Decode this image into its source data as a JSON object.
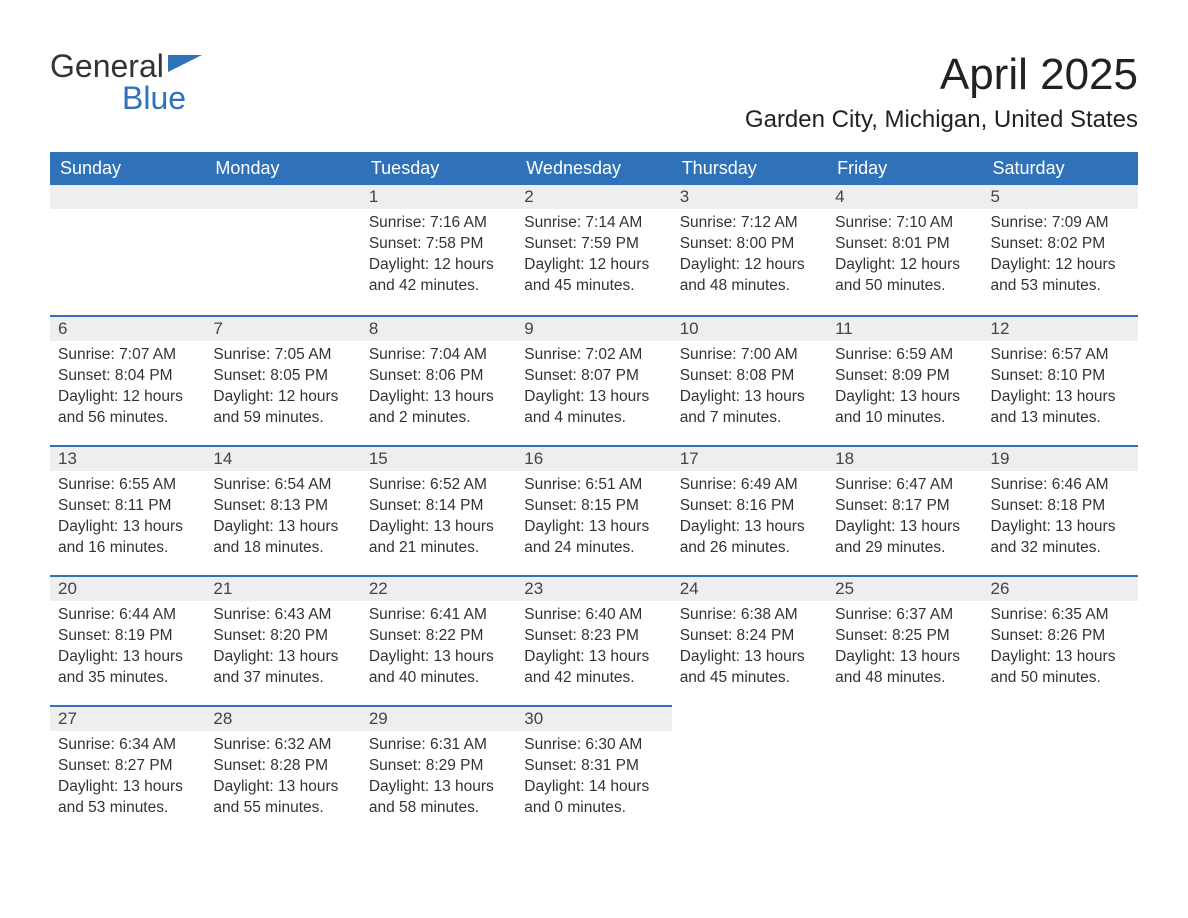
{
  "logo": {
    "word1": "General",
    "word2": "Blue",
    "accent_color": "#2f72b9"
  },
  "title": "April 2025",
  "location": "Garden City, Michigan, United States",
  "colors": {
    "header_bg": "#2f72b9",
    "header_text": "#ffffff",
    "daynum_bg": "#eeeeee",
    "week_divider": "#2f72b9",
    "body_text": "#333333",
    "page_bg": "#ffffff"
  },
  "day_headers": [
    "Sunday",
    "Monday",
    "Tuesday",
    "Wednesday",
    "Thursday",
    "Friday",
    "Saturday"
  ],
  "weeks": [
    [
      null,
      null,
      {
        "n": "1",
        "sunrise": "Sunrise: 7:16 AM",
        "sunset": "Sunset: 7:58 PM",
        "daylight": "Daylight: 12 hours and 42 minutes."
      },
      {
        "n": "2",
        "sunrise": "Sunrise: 7:14 AM",
        "sunset": "Sunset: 7:59 PM",
        "daylight": "Daylight: 12 hours and 45 minutes."
      },
      {
        "n": "3",
        "sunrise": "Sunrise: 7:12 AM",
        "sunset": "Sunset: 8:00 PM",
        "daylight": "Daylight: 12 hours and 48 minutes."
      },
      {
        "n": "4",
        "sunrise": "Sunrise: 7:10 AM",
        "sunset": "Sunset: 8:01 PM",
        "daylight": "Daylight: 12 hours and 50 minutes."
      },
      {
        "n": "5",
        "sunrise": "Sunrise: 7:09 AM",
        "sunset": "Sunset: 8:02 PM",
        "daylight": "Daylight: 12 hours and 53 minutes."
      }
    ],
    [
      {
        "n": "6",
        "sunrise": "Sunrise: 7:07 AM",
        "sunset": "Sunset: 8:04 PM",
        "daylight": "Daylight: 12 hours and 56 minutes."
      },
      {
        "n": "7",
        "sunrise": "Sunrise: 7:05 AM",
        "sunset": "Sunset: 8:05 PM",
        "daylight": "Daylight: 12 hours and 59 minutes."
      },
      {
        "n": "8",
        "sunrise": "Sunrise: 7:04 AM",
        "sunset": "Sunset: 8:06 PM",
        "daylight": "Daylight: 13 hours and 2 minutes."
      },
      {
        "n": "9",
        "sunrise": "Sunrise: 7:02 AM",
        "sunset": "Sunset: 8:07 PM",
        "daylight": "Daylight: 13 hours and 4 minutes."
      },
      {
        "n": "10",
        "sunrise": "Sunrise: 7:00 AM",
        "sunset": "Sunset: 8:08 PM",
        "daylight": "Daylight: 13 hours and 7 minutes."
      },
      {
        "n": "11",
        "sunrise": "Sunrise: 6:59 AM",
        "sunset": "Sunset: 8:09 PM",
        "daylight": "Daylight: 13 hours and 10 minutes."
      },
      {
        "n": "12",
        "sunrise": "Sunrise: 6:57 AM",
        "sunset": "Sunset: 8:10 PM",
        "daylight": "Daylight: 13 hours and 13 minutes."
      }
    ],
    [
      {
        "n": "13",
        "sunrise": "Sunrise: 6:55 AM",
        "sunset": "Sunset: 8:11 PM",
        "daylight": "Daylight: 13 hours and 16 minutes."
      },
      {
        "n": "14",
        "sunrise": "Sunrise: 6:54 AM",
        "sunset": "Sunset: 8:13 PM",
        "daylight": "Daylight: 13 hours and 18 minutes."
      },
      {
        "n": "15",
        "sunrise": "Sunrise: 6:52 AM",
        "sunset": "Sunset: 8:14 PM",
        "daylight": "Daylight: 13 hours and 21 minutes."
      },
      {
        "n": "16",
        "sunrise": "Sunrise: 6:51 AM",
        "sunset": "Sunset: 8:15 PM",
        "daylight": "Daylight: 13 hours and 24 minutes."
      },
      {
        "n": "17",
        "sunrise": "Sunrise: 6:49 AM",
        "sunset": "Sunset: 8:16 PM",
        "daylight": "Daylight: 13 hours and 26 minutes."
      },
      {
        "n": "18",
        "sunrise": "Sunrise: 6:47 AM",
        "sunset": "Sunset: 8:17 PM",
        "daylight": "Daylight: 13 hours and 29 minutes."
      },
      {
        "n": "19",
        "sunrise": "Sunrise: 6:46 AM",
        "sunset": "Sunset: 8:18 PM",
        "daylight": "Daylight: 13 hours and 32 minutes."
      }
    ],
    [
      {
        "n": "20",
        "sunrise": "Sunrise: 6:44 AM",
        "sunset": "Sunset: 8:19 PM",
        "daylight": "Daylight: 13 hours and 35 minutes."
      },
      {
        "n": "21",
        "sunrise": "Sunrise: 6:43 AM",
        "sunset": "Sunset: 8:20 PM",
        "daylight": "Daylight: 13 hours and 37 minutes."
      },
      {
        "n": "22",
        "sunrise": "Sunrise: 6:41 AM",
        "sunset": "Sunset: 8:22 PM",
        "daylight": "Daylight: 13 hours and 40 minutes."
      },
      {
        "n": "23",
        "sunrise": "Sunrise: 6:40 AM",
        "sunset": "Sunset: 8:23 PM",
        "daylight": "Daylight: 13 hours and 42 minutes."
      },
      {
        "n": "24",
        "sunrise": "Sunrise: 6:38 AM",
        "sunset": "Sunset: 8:24 PM",
        "daylight": "Daylight: 13 hours and 45 minutes."
      },
      {
        "n": "25",
        "sunrise": "Sunrise: 6:37 AM",
        "sunset": "Sunset: 8:25 PM",
        "daylight": "Daylight: 13 hours and 48 minutes."
      },
      {
        "n": "26",
        "sunrise": "Sunrise: 6:35 AM",
        "sunset": "Sunset: 8:26 PM",
        "daylight": "Daylight: 13 hours and 50 minutes."
      }
    ],
    [
      {
        "n": "27",
        "sunrise": "Sunrise: 6:34 AM",
        "sunset": "Sunset: 8:27 PM",
        "daylight": "Daylight: 13 hours and 53 minutes."
      },
      {
        "n": "28",
        "sunrise": "Sunrise: 6:32 AM",
        "sunset": "Sunset: 8:28 PM",
        "daylight": "Daylight: 13 hours and 55 minutes."
      },
      {
        "n": "29",
        "sunrise": "Sunrise: 6:31 AM",
        "sunset": "Sunset: 8:29 PM",
        "daylight": "Daylight: 13 hours and 58 minutes."
      },
      {
        "n": "30",
        "sunrise": "Sunrise: 6:30 AM",
        "sunset": "Sunset: 8:31 PM",
        "daylight": "Daylight: 14 hours and 0 minutes."
      },
      null,
      null,
      null
    ]
  ]
}
